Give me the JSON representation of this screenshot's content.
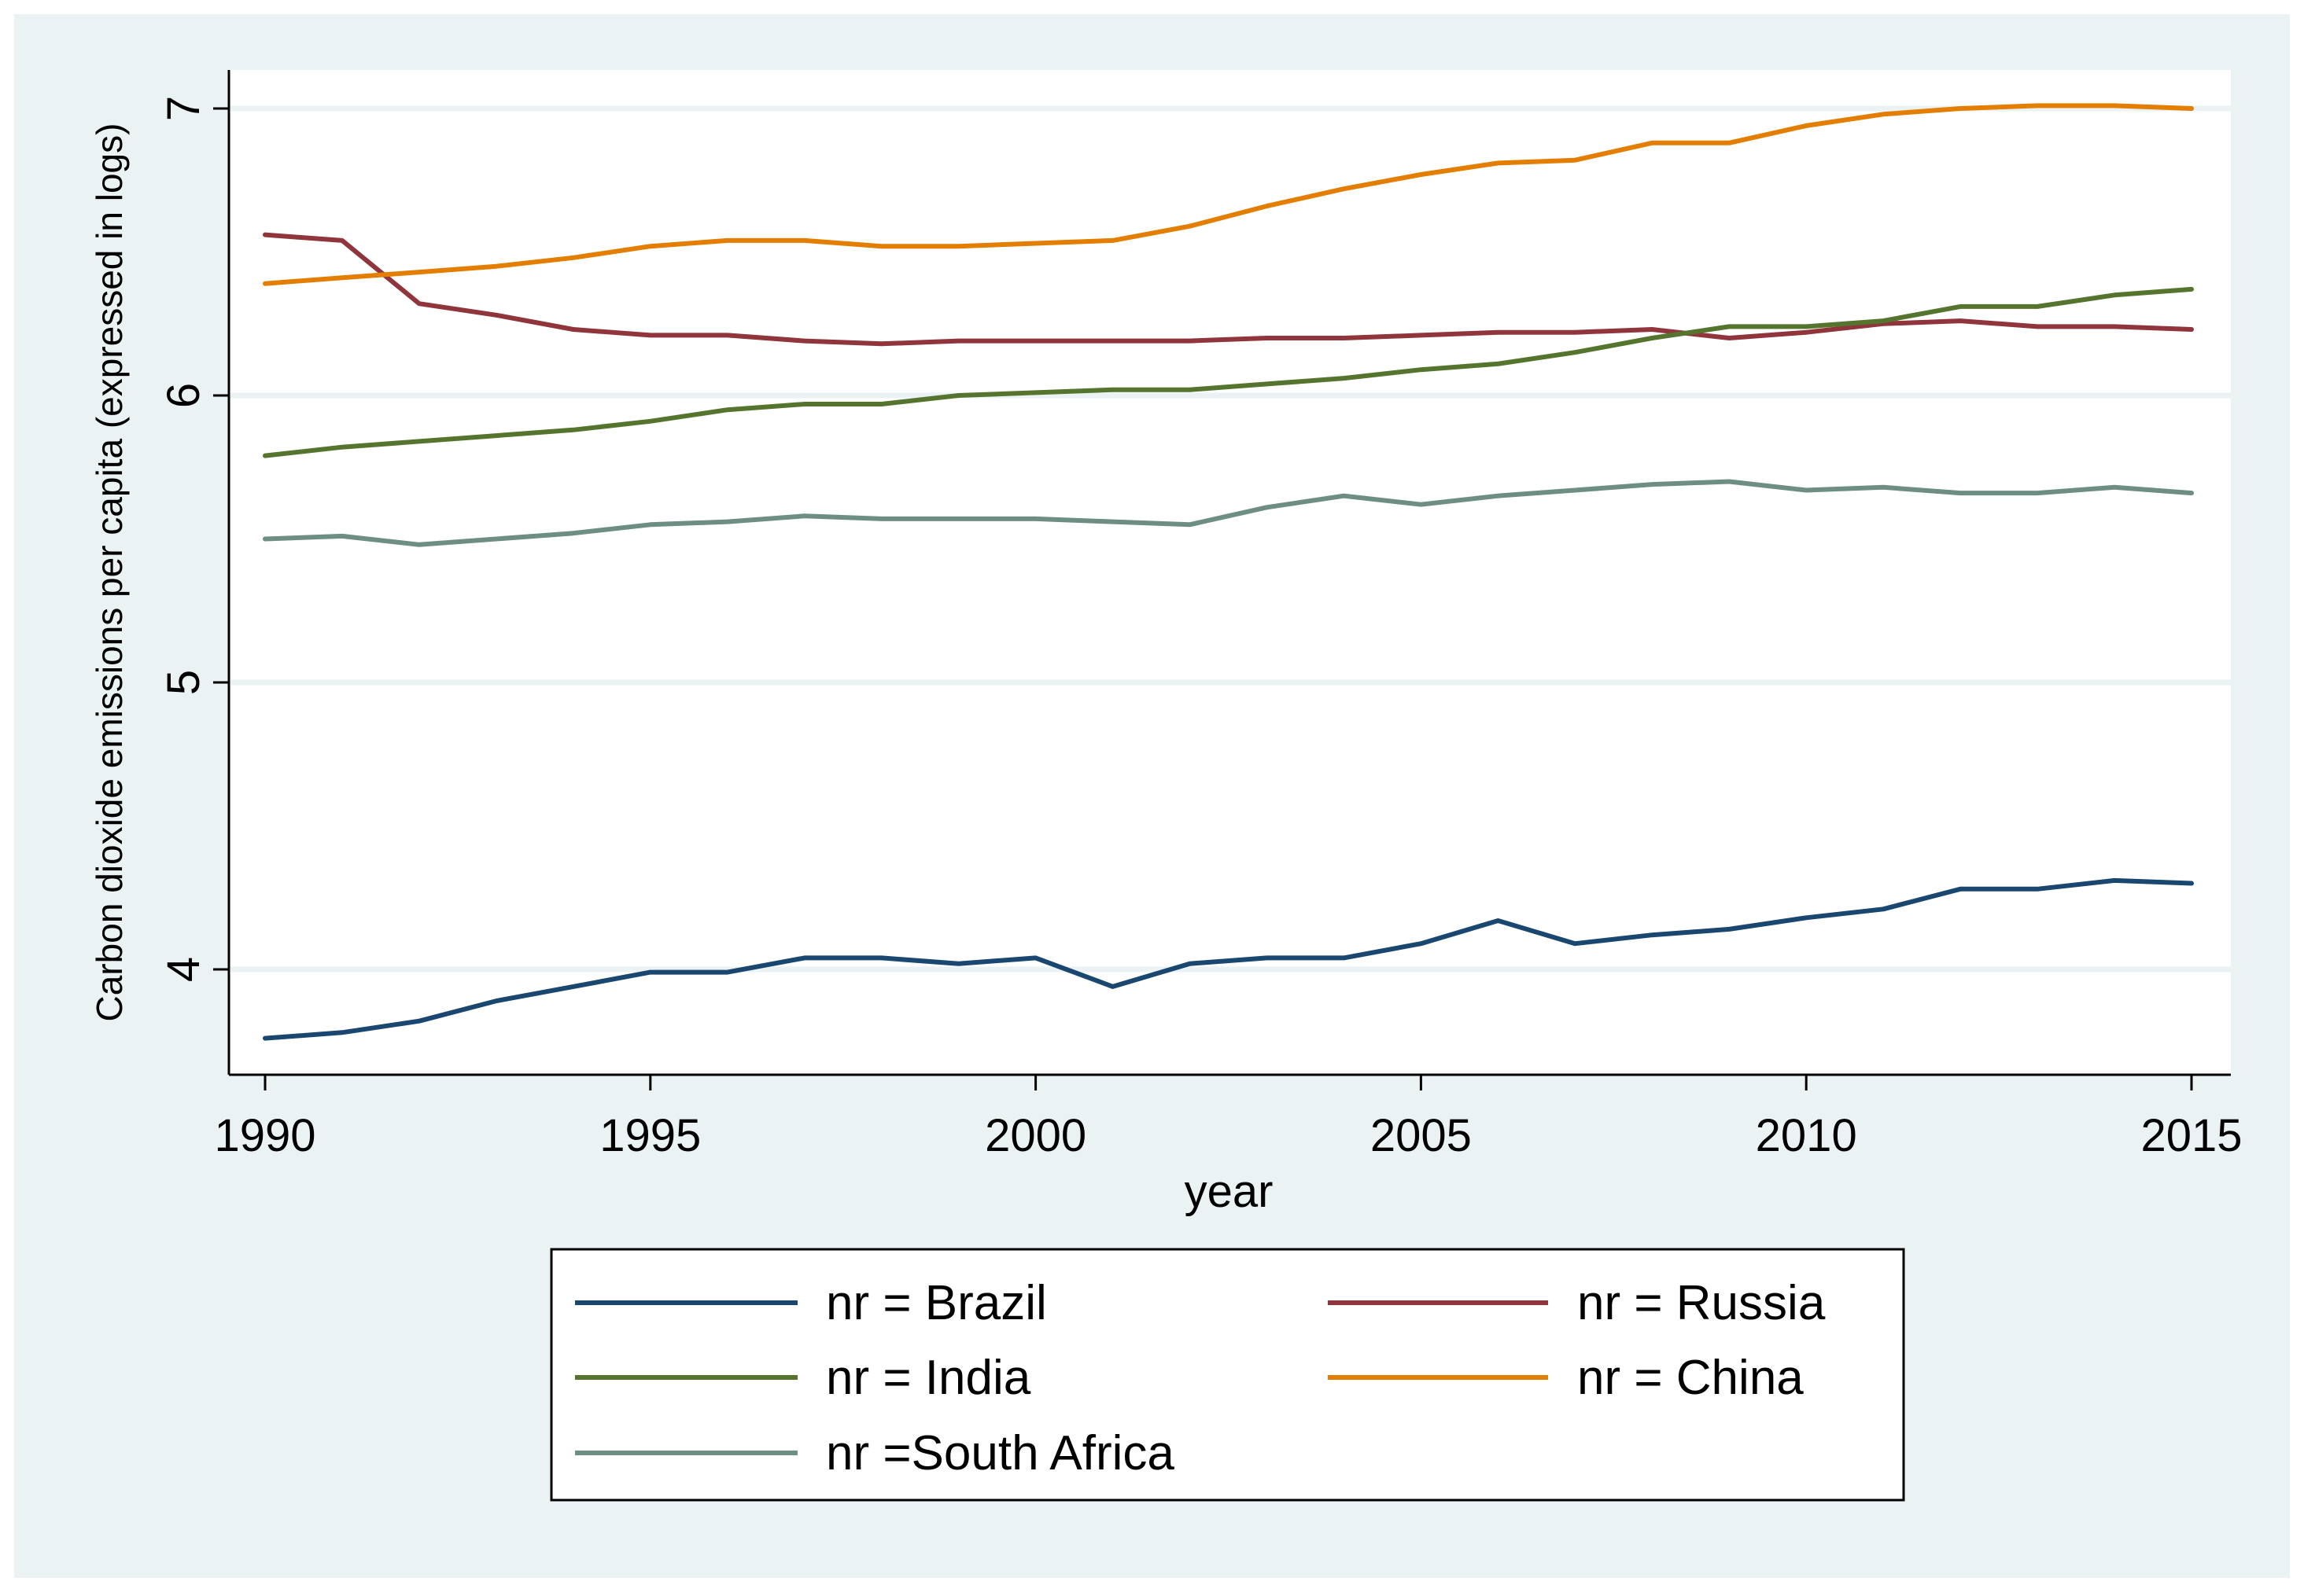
{
  "chart_data": {
    "type": "line",
    "title": "",
    "xlabel": "year",
    "ylabel": "Carbon dioxide emissions per capita (expressed in logs)",
    "xlim": [
      1990,
      2015
    ],
    "ylim": [
      3.65,
      7.15
    ],
    "x_ticks": [
      1990,
      1995,
      2000,
      2005,
      2010,
      2015
    ],
    "y_ticks": [
      4,
      5,
      6,
      7
    ],
    "grid": true,
    "legend_position": "bottom",
    "x": [
      1990,
      1991,
      1992,
      1993,
      1994,
      1995,
      1996,
      1997,
      1998,
      1999,
      2000,
      2001,
      2002,
      2003,
      2004,
      2005,
      2006,
      2007,
      2008,
      2009,
      2010,
      2011,
      2012,
      2013,
      2014,
      2015
    ],
    "series": [
      {
        "name": "nr = Brazil",
        "color": "#1a476f",
        "values": [
          3.76,
          3.78,
          3.82,
          3.89,
          3.94,
          3.99,
          3.99,
          4.04,
          4.04,
          4.02,
          4.04,
          3.94,
          4.02,
          4.04,
          4.04,
          4.09,
          4.17,
          4.09,
          4.12,
          4.14,
          4.18,
          4.21,
          4.28,
          4.28,
          4.31,
          4.3
        ]
      },
      {
        "name": "nr = Russia",
        "color": "#90353b",
        "values": [
          6.56,
          6.54,
          6.32,
          6.28,
          6.23,
          6.21,
          6.21,
          6.19,
          6.18,
          6.19,
          6.19,
          6.19,
          6.19,
          6.2,
          6.2,
          6.21,
          6.22,
          6.22,
          6.23,
          6.2,
          6.22,
          6.25,
          6.26,
          6.24,
          6.24,
          6.23
        ]
      },
      {
        "name": "nr = India",
        "color": "#55752f",
        "values": [
          5.79,
          5.82,
          5.84,
          5.86,
          5.88,
          5.91,
          5.95,
          5.97,
          5.97,
          6.0,
          6.01,
          6.02,
          6.02,
          6.04,
          6.06,
          6.09,
          6.11,
          6.15,
          6.2,
          6.24,
          6.24,
          6.26,
          6.31,
          6.31,
          6.35,
          6.37
        ]
      },
      {
        "name": "nr = China",
        "color": "#e37e00",
        "values": [
          6.39,
          6.41,
          6.43,
          6.45,
          6.48,
          6.52,
          6.54,
          6.54,
          6.52,
          6.52,
          6.53,
          6.54,
          6.59,
          6.66,
          6.72,
          6.77,
          6.81,
          6.82,
          6.88,
          6.88,
          6.94,
          6.98,
          7.0,
          7.01,
          7.01,
          7.0
        ]
      },
      {
        "name": "nr =South Africa",
        "color": "#6e8e84",
        "values": [
          5.5,
          5.51,
          5.48,
          5.5,
          5.52,
          5.55,
          5.56,
          5.58,
          5.57,
          5.57,
          5.57,
          5.56,
          5.55,
          5.61,
          5.65,
          5.62,
          5.65,
          5.67,
          5.69,
          5.7,
          5.67,
          5.68,
          5.66,
          5.66,
          5.68,
          5.66
        ]
      }
    ],
    "colors": {
      "background": "#eaf2f3",
      "plot_background": "#ffffff",
      "grid": "#eaf2f3",
      "axis": "#000000"
    }
  }
}
